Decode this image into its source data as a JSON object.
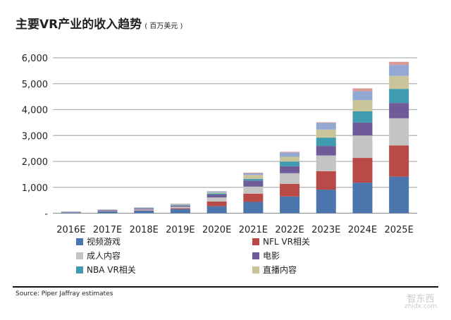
{
  "title": "主要VR产业的收入趋势",
  "unit": "( 百万美元 )",
  "source": "Source: Piper Jaffray estimates",
  "watermark": {
    "logo": "智东西",
    "domain": "zhidx.com"
  },
  "chart_data": {
    "type": "bar",
    "stacked": true,
    "categories": [
      "2016E",
      "2017E",
      "2018E",
      "2019E",
      "2020E",
      "2021E",
      "2022E",
      "2023E",
      "2024E",
      "2025E"
    ],
    "ylim": [
      0,
      6000
    ],
    "yticks": [
      0,
      1000,
      2000,
      3000,
      4000,
      5000,
      6000
    ],
    "ytick_labels": [
      "-",
      "1,000",
      "2,000",
      "3,000",
      "4,000",
      "5,000",
      "6,000"
    ],
    "grid": true,
    "legend_position": "bottom",
    "series": [
      {
        "name": "视频游戏",
        "color": "#4a76ad",
        "values": [
          30,
          70,
          100,
          160,
          270,
          436,
          645,
          910,
          1180,
          1410
        ]
      },
      {
        "name": "NFL VR相关",
        "color": "#b94a48",
        "values": [
          5,
          10,
          15,
          30,
          180,
          320,
          490,
          710,
          955,
          1210
        ]
      },
      {
        "name": "成人内容",
        "color": "#c4c4c4",
        "values": [
          10,
          20,
          35,
          60,
          160,
          270,
          410,
          610,
          865,
          1045
        ]
      },
      {
        "name": "电影",
        "color": "#6f5a9a",
        "values": [
          10,
          25,
          30,
          40,
          110,
          230,
          270,
          365,
          500,
          590
        ]
      },
      {
        "name": "NBA VR相关",
        "color": "#3f9cb0",
        "values": [
          2,
          5,
          10,
          20,
          40,
          70,
          180,
          325,
          435,
          545
        ]
      },
      {
        "name": "直播内容",
        "color": "#c9c49a",
        "values": [
          2,
          5,
          10,
          20,
          40,
          150,
          180,
          310,
          430,
          500
        ]
      },
      {
        "color": "#93a9d4",
        "values": [
          3,
          9,
          20,
          30,
          40,
          70,
          165,
          255,
          345,
          425
        ]
      },
      {
        "color": "#d99a94",
        "values": [
          1,
          0,
          5,
          10,
          10,
          20,
          30,
          25,
          110,
          120
        ]
      }
    ]
  }
}
